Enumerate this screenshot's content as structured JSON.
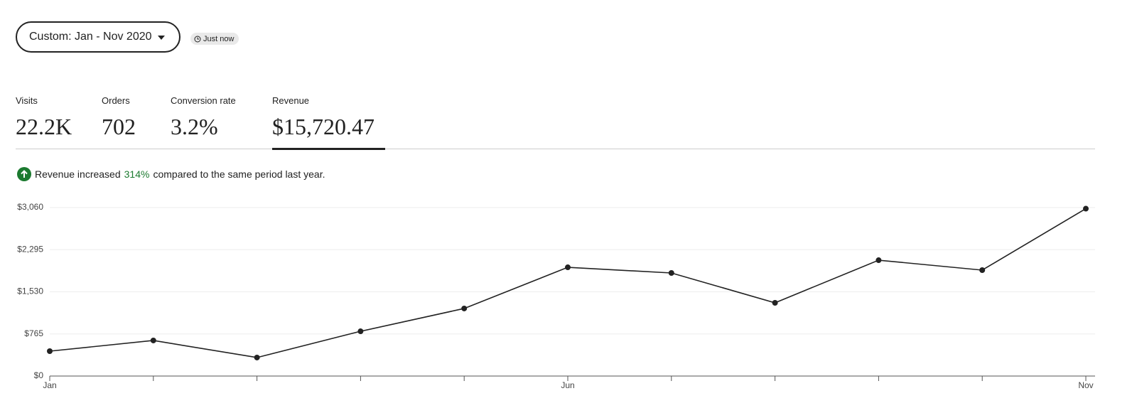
{
  "date_button": "Custom: Jan - Nov 2020",
  "refresh_badge": "Just now",
  "metrics": [
    {
      "label": "Visits",
      "value": "22.2K"
    },
    {
      "label": "Orders",
      "value": "702"
    },
    {
      "label": "Conversion rate",
      "value": "3.2%"
    },
    {
      "label": "Revenue",
      "value": "$15,720.47"
    }
  ],
  "insight": {
    "prefix": "Revenue increased",
    "highlight": "314%",
    "suffix": "compared to the same period last year."
  },
  "chart_data": {
    "type": "line",
    "categories": [
      "Jan",
      null,
      null,
      null,
      null,
      "Jun",
      null,
      null,
      null,
      null,
      "Nov"
    ],
    "series": [
      {
        "name": "Revenue",
        "color": "#222222",
        "values": [
          452,
          646,
          336,
          813,
          1227,
          1975,
          1872,
          1330,
          2104,
          1924,
          3040
        ]
      }
    ],
    "ylim": [
      0,
      3060
    ],
    "yticks": [
      {
        "value": 0,
        "label": "$0"
      },
      {
        "value": 765,
        "label": "$765"
      },
      {
        "value": 1530,
        "label": "$1,530"
      },
      {
        "value": 2295,
        "label": "$2,295"
      },
      {
        "value": 3060,
        "label": "$3,060"
      }
    ],
    "grid": true
  }
}
